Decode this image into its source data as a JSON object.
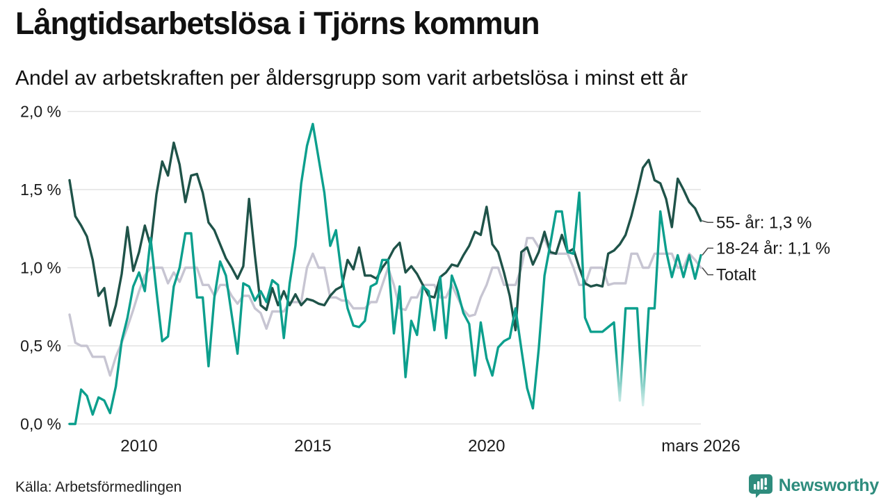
{
  "header": {
    "title": "Långtidsarbetslösa i Tjörns kommun",
    "subtitle": "Andel av arbetskraften per åldersgrupp som varit arbetslösa i minst ett år"
  },
  "footer": {
    "source": "Källa: Arbetsförmedlingen",
    "brand": "Newsworthy",
    "brand_color": "#2e8c7d"
  },
  "chart_data": {
    "type": "line",
    "title": "Långtidsarbetslösa i Tjörns kommun",
    "xlabel": "",
    "ylabel": "",
    "x_start": 2008.0,
    "x_end": 2026.167,
    "x_step": 0.16667,
    "ylim": [
      0,
      2.0
    ],
    "grid": true,
    "grid_color": "#e2e2e2",
    "axis_text_color": "#1a1a1a",
    "yticks": [
      {
        "value": 0.0,
        "label": "0,0 %"
      },
      {
        "value": 0.5,
        "label": "0,5 %"
      },
      {
        "value": 1.0,
        "label": "1,0 %"
      },
      {
        "value": 1.5,
        "label": "1,5 %"
      },
      {
        "value": 2.0,
        "label": "2,0 %"
      }
    ],
    "xticks": [
      {
        "value": 2010,
        "label": "2010"
      },
      {
        "value": 2015,
        "label": "2015"
      },
      {
        "value": 2020,
        "label": "2020"
      },
      {
        "value": 2026.167,
        "label": "mars 2026"
      }
    ],
    "series": [
      {
        "name": "Totalt",
        "color": "#c7c5d2",
        "values": [
          0.7,
          0.52,
          0.5,
          0.5,
          0.43,
          0.43,
          0.43,
          0.31,
          0.43,
          0.52,
          0.62,
          0.73,
          0.85,
          0.95,
          1.0,
          1.0,
          1.0,
          0.9,
          0.97,
          0.91,
          1.0,
          1.0,
          1.0,
          0.89,
          0.89,
          0.82,
          0.89,
          0.89,
          0.82,
          0.77,
          0.82,
          0.82,
          0.74,
          0.71,
          0.61,
          0.72,
          0.72,
          0.72,
          0.78,
          0.78,
          0.78,
          1.0,
          1.09,
          1.0,
          1.0,
          0.81,
          0.81,
          0.79,
          0.79,
          0.74,
          0.74,
          0.74,
          0.78,
          0.78,
          0.89,
          1.0,
          0.89,
          0.74,
          0.73,
          0.81,
          0.81,
          0.89,
          0.89,
          0.89,
          0.81,
          0.81,
          0.89,
          0.81,
          0.73,
          0.69,
          0.7,
          0.81,
          0.89,
          1.0,
          1.0,
          0.89,
          0.89,
          0.89,
          1.0,
          1.19,
          1.19,
          1.13,
          1.19,
          1.09,
          1.09,
          1.09,
          1.09,
          1.0,
          0.89,
          0.89,
          1.0,
          1.0,
          1.0,
          0.89,
          0.9,
          0.9,
          0.9,
          1.09,
          1.09,
          1.0,
          1.0,
          1.09,
          1.09,
          1.09,
          1.09,
          1.0,
          1.0,
          1.09,
          1.05,
          1.0
        ]
      },
      {
        "name": "55- år",
        "color": "#1f5349",
        "values": [
          1.56,
          1.33,
          1.27,
          1.2,
          1.05,
          0.82,
          0.87,
          0.63,
          0.76,
          0.96,
          1.26,
          0.98,
          1.1,
          1.27,
          1.14,
          1.47,
          1.68,
          1.59,
          1.8,
          1.66,
          1.42,
          1.59,
          1.6,
          1.48,
          1.29,
          1.24,
          1.15,
          1.06,
          1.0,
          0.93,
          1.01,
          1.44,
          1.08,
          0.76,
          0.73,
          0.87,
          0.76,
          0.85,
          0.76,
          0.83,
          0.76,
          0.8,
          0.79,
          0.77,
          0.76,
          0.82,
          0.86,
          0.88,
          1.05,
          0.99,
          1.13,
          0.95,
          0.95,
          0.93,
          1.0,
          1.05,
          1.12,
          1.16,
          0.97,
          1.01,
          0.96,
          0.89,
          0.82,
          0.81,
          0.94,
          0.97,
          1.02,
          1.01,
          1.08,
          1.14,
          1.23,
          1.21,
          1.39,
          1.15,
          1.1,
          0.97,
          0.82,
          0.6,
          1.1,
          1.13,
          1.02,
          1.1,
          1.23,
          1.1,
          1.09,
          1.21,
          1.1,
          1.12,
          1.0,
          0.9,
          0.88,
          0.89,
          0.88,
          1.09,
          1.11,
          1.15,
          1.21,
          1.33,
          1.48,
          1.64,
          1.69,
          1.56,
          1.54,
          1.44,
          1.26,
          1.57,
          1.5,
          1.42,
          1.38,
          1.3
        ]
      },
      {
        "name": "18-24 år",
        "color": "#0c9f8d",
        "values": [
          0.0,
          0.0,
          0.22,
          0.18,
          0.06,
          0.17,
          0.15,
          0.07,
          0.24,
          0.53,
          0.68,
          0.88,
          0.97,
          0.85,
          1.19,
          0.85,
          0.53,
          0.56,
          0.88,
          1.0,
          1.22,
          1.22,
          0.81,
          0.81,
          0.37,
          0.81,
          1.04,
          0.95,
          0.7,
          0.45,
          0.9,
          0.88,
          0.79,
          0.85,
          0.78,
          0.92,
          0.89,
          0.55,
          0.9,
          1.14,
          1.54,
          1.78,
          1.92,
          1.7,
          1.48,
          1.14,
          1.24,
          0.95,
          0.74,
          0.63,
          0.62,
          0.66,
          0.88,
          0.9,
          1.05,
          1.05,
          0.58,
          0.88,
          0.3,
          0.66,
          0.57,
          0.88,
          0.85,
          0.6,
          0.94,
          0.55,
          0.95,
          0.85,
          0.71,
          0.64,
          0.31,
          0.65,
          0.42,
          0.31,
          0.49,
          0.53,
          0.55,
          0.74,
          0.48,
          0.23,
          0.1,
          0.48,
          0.95,
          1.15,
          1.36,
          1.36,
          1.1,
          1.09,
          1.48,
          0.68,
          0.59,
          0.59,
          0.59,
          0.62,
          0.65,
          0.15,
          0.74,
          0.74,
          0.74,
          0.12,
          0.74,
          0.74,
          1.36,
          1.11,
          0.94,
          1.08,
          0.94,
          1.08,
          0.93,
          1.08
        ]
      }
    ],
    "annotations": [
      {
        "label": "55- år: 1,3 %",
        "series": "55- år",
        "end_value": 1.3,
        "label_value": 1.29
      },
      {
        "label": "18-24 år: 1,1 %",
        "series": "18-24 år",
        "end_value": 1.08,
        "label_value": 1.125
      },
      {
        "label": "Totalt",
        "series": "Totalt",
        "end_value": 1.0,
        "label_value": 0.955
      }
    ],
    "fade_dips_x": [
      2023.83,
      2024.5
    ],
    "legend_position": "right-of-line-ends"
  }
}
